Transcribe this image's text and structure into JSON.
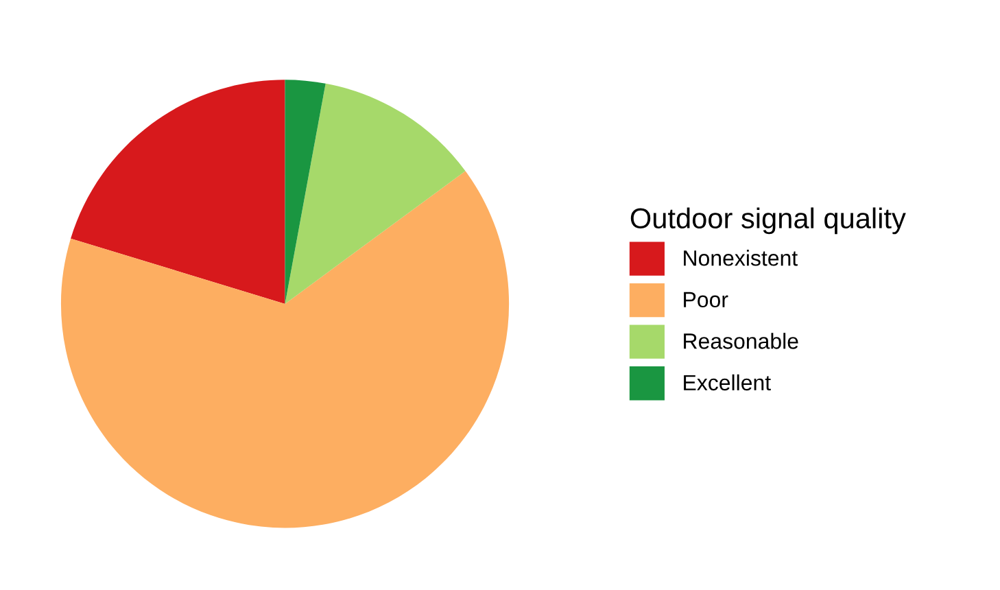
{
  "chart_data": {
    "type": "pie",
    "legend_title": "Outdoor signal quality",
    "categories": [
      "Nonexistent",
      "Poor",
      "Reasonable",
      "Excellent"
    ],
    "values": [
      20.3,
      64.8,
      12.0,
      2.9
    ],
    "colors": [
      "#d7191c",
      "#fdae61",
      "#a6d96a",
      "#1a9641"
    ],
    "legend": "right"
  }
}
